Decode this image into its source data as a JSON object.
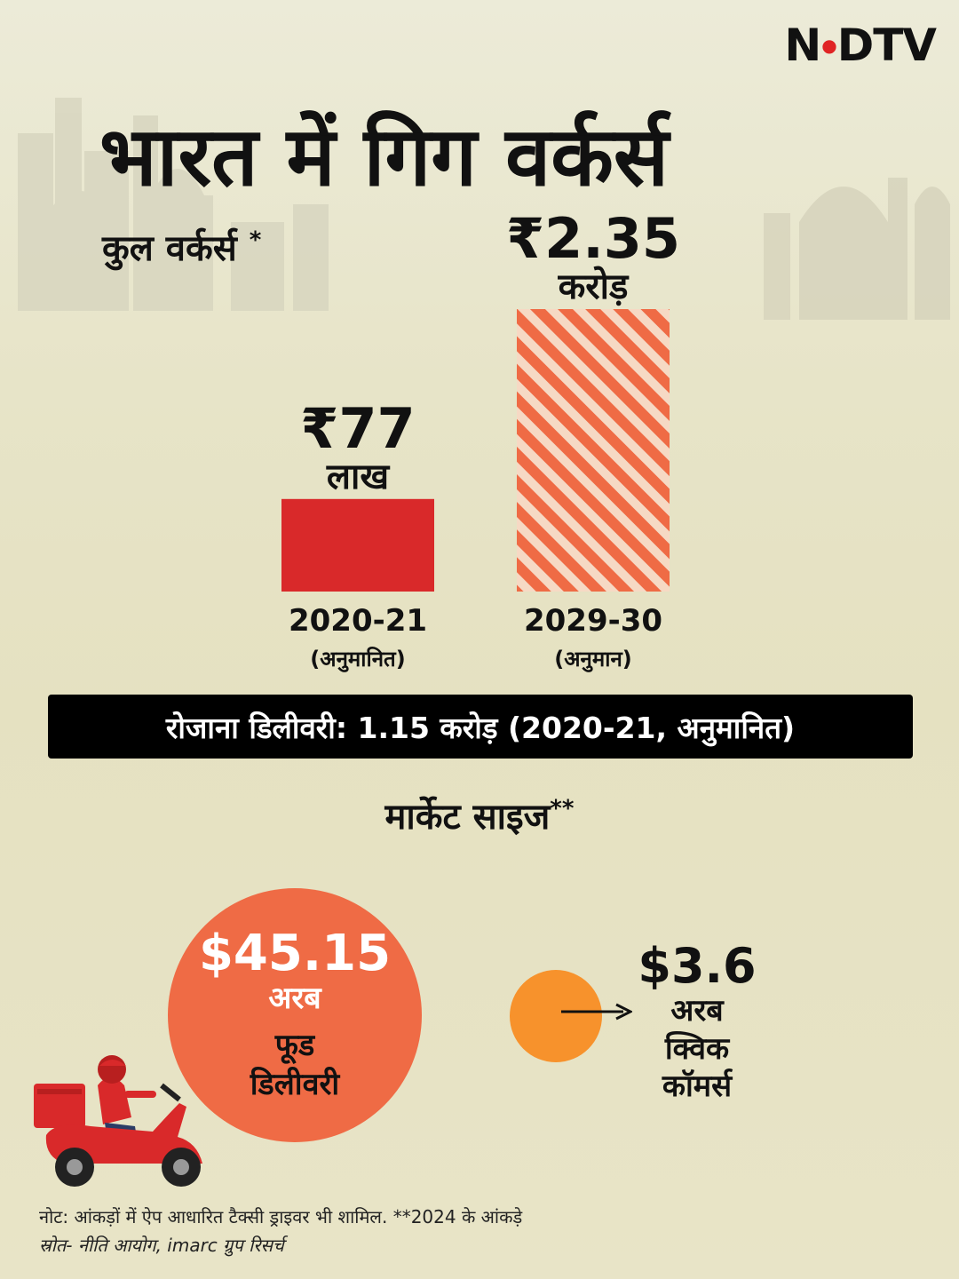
{
  "brand": {
    "logo_left": "N",
    "logo_right": "DTV",
    "accent_color": "#e02424"
  },
  "header": {
    "title": "भारत में गिग वर्कर्स",
    "subtitle": "कुल वर्कर्स",
    "subtitle_mark": "*"
  },
  "chart_data": {
    "type": "bar",
    "categories": [
      "2020-21",
      "2029-30"
    ],
    "category_notes": [
      "(अनुमानित)",
      "(अनुमान)"
    ],
    "values": [
      7700000,
      23500000
    ],
    "value_labels": [
      "₹77",
      "₹2.35"
    ],
    "value_units": [
      "लाख",
      "करोड़"
    ],
    "colors": [
      "#d9292a",
      "#ef6b45"
    ],
    "styles": [
      "solid",
      "striped"
    ],
    "title": "कुल वर्कर्स",
    "xlabel": "",
    "ylabel": "",
    "ylim": [
      0,
      23500000
    ],
    "grid": false
  },
  "banner": {
    "text": "रोजाना डिलीवरी: 1.15 करोड़ (2020-21, अनुमानित)"
  },
  "market": {
    "title": "मार्केट साइज",
    "title_mark": "**",
    "food": {
      "value": "$45.15",
      "unit": "अरब",
      "label_line1": "फूड",
      "label_line2": "डिलीवरी",
      "color": "#ef6b45"
    },
    "quick": {
      "value": "$3.6",
      "unit": "अरब",
      "label_line1": "क्विक",
      "label_line2": "कॉमर्स",
      "color": "#f7922c"
    }
  },
  "footer": {
    "note": "नोट: आंकड़ों में ऐप आधारित टैक्सी ड्राइवर भी शामिल. **2024 के आंकड़े",
    "source": "स्रोत- नीति आयोग, imarc ग्रुप रिसर्च"
  }
}
